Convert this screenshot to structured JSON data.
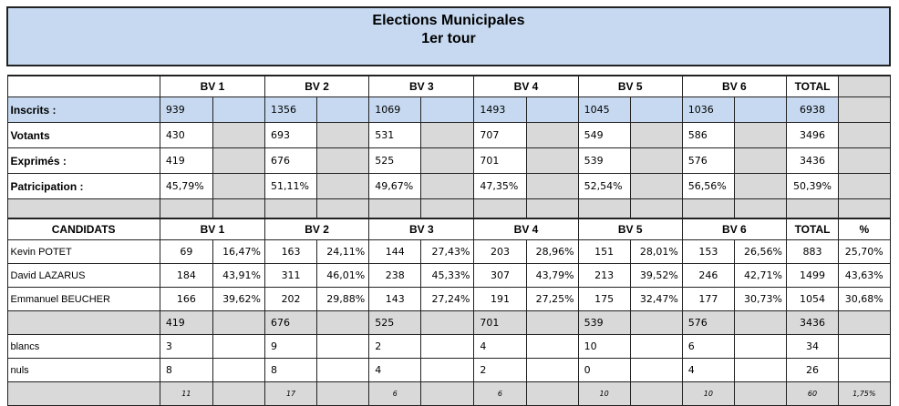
{
  "title": {
    "line1": "Elections Municipales",
    "line2": "1er tour"
  },
  "bv_headers": [
    "BV 1",
    "BV 2",
    "BV 3",
    "BV 4",
    "BV 5",
    "BV 6"
  ],
  "total_label": "TOTAL",
  "pct_label": "%",
  "summary": [
    {
      "label": "Inscrits :",
      "values": [
        "939",
        "1356",
        "1069",
        "1493",
        "1045",
        "1036"
      ],
      "total": "6938"
    },
    {
      "label": "Votants",
      "values": [
        "430",
        "693",
        "531",
        "707",
        "549",
        "586"
      ],
      "total": "3496"
    },
    {
      "label": "Exprimés :",
      "values": [
        "419",
        "676",
        "525",
        "701",
        "539",
        "576"
      ],
      "total": "3436"
    },
    {
      "label": "Patricipation :",
      "values": [
        "45,79%",
        "51,11%",
        "49,67%",
        "47,35%",
        "52,54%",
        "56,56%"
      ],
      "total": "50,39%"
    }
  ],
  "candidates_header": "CANDIDATS",
  "candidates": [
    {
      "name": "Kevin POTET",
      "votes": [
        "69",
        "163",
        "144",
        "203",
        "151",
        "153"
      ],
      "pcts": [
        "16,47%",
        "24,11%",
        "27,43%",
        "28,96%",
        "28,01%",
        "26,56%"
      ],
      "total": "883",
      "pct": "25,70%"
    },
    {
      "name": "David LAZARUS",
      "votes": [
        "184",
        "311",
        "238",
        "307",
        "213",
        "246"
      ],
      "pcts": [
        "43,91%",
        "46,01%",
        "45,33%",
        "43,79%",
        "39,52%",
        "42,71%"
      ],
      "total": "1499",
      "pct": "43,63%"
    },
    {
      "name": "Emmanuel BEUCHER",
      "votes": [
        "166",
        "202",
        "143",
        "191",
        "175",
        "177"
      ],
      "pcts": [
        "39,62%",
        "29,88%",
        "27,24%",
        "27,25%",
        "32,47%",
        "30,73%"
      ],
      "total": "1054",
      "pct": "30,68%"
    }
  ],
  "sum_row": {
    "values": [
      "419",
      "676",
      "525",
      "701",
      "539",
      "576"
    ],
    "total": "3436"
  },
  "blancs": {
    "label": "blancs",
    "values": [
      "3",
      "9",
      "2",
      "4",
      "10",
      "6"
    ],
    "total": "34"
  },
  "nuls": {
    "label": "nuls",
    "values": [
      "8",
      "8",
      "4",
      "2",
      "0",
      "4"
    ],
    "total": "26"
  },
  "bottom_row": {
    "values": [
      "11",
      "17",
      "6",
      "6",
      "10",
      "10"
    ],
    "total": "60",
    "pct": "1,75%"
  }
}
